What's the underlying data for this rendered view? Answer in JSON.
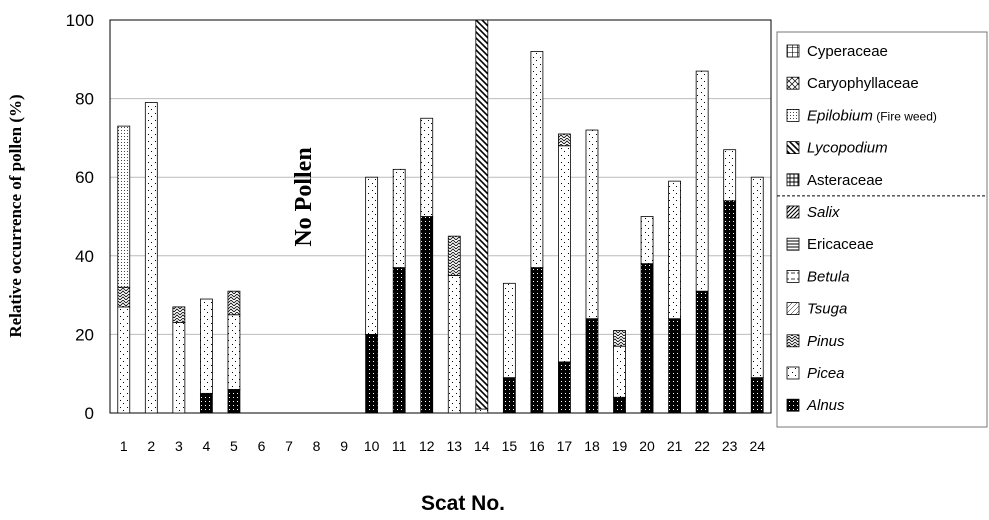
{
  "chart_data": {
    "type": "bar",
    "stacked": true,
    "xlabel": "Scat No.",
    "ylabel": "Relative occurrence of pollen (%)",
    "ylim": [
      0,
      100
    ],
    "yticks": [
      0,
      20,
      40,
      60,
      80,
      100
    ],
    "categories": [
      "1",
      "2",
      "3",
      "4",
      "5",
      "6",
      "7",
      "8",
      "9",
      "10",
      "11",
      "12",
      "13",
      "14",
      "15",
      "16",
      "17",
      "18",
      "19",
      "20",
      "21",
      "22",
      "23",
      "24"
    ],
    "annotation": "No Pollen",
    "legend_position": "right",
    "series": [
      {
        "name": "Alnus",
        "italic": true,
        "pattern": "alnus",
        "values": [
          0,
          0,
          0,
          5,
          6,
          0,
          0,
          0,
          0,
          20,
          37,
          50,
          0,
          0,
          9,
          37,
          13,
          24,
          4,
          38,
          24,
          31,
          54,
          9
        ]
      },
      {
        "name": "Picea",
        "italic": true,
        "pattern": "picea",
        "values": [
          27,
          79,
          23,
          24,
          19,
          0,
          0,
          0,
          0,
          40,
          25,
          25,
          35,
          1,
          24,
          55,
          55,
          48,
          13,
          12,
          35,
          56,
          13,
          51
        ]
      },
      {
        "name": "Pinus",
        "italic": true,
        "pattern": "pinus",
        "values": [
          5,
          0,
          4,
          0,
          6,
          0,
          0,
          0,
          0,
          0,
          0,
          0,
          10,
          0,
          0,
          0,
          3,
          0,
          4,
          0,
          0,
          0,
          0,
          0
        ]
      },
      {
        "name": "Tsuga",
        "italic": true,
        "pattern": "tsuga",
        "values": [
          0,
          0,
          0,
          0,
          0,
          0,
          0,
          0,
          0,
          0,
          0,
          0,
          0,
          0,
          0,
          0,
          0,
          0,
          0,
          0,
          0,
          0,
          0,
          0
        ]
      },
      {
        "name": "Betula",
        "italic": true,
        "pattern": "betula",
        "values": [
          0,
          0,
          0,
          0,
          0,
          0,
          0,
          0,
          0,
          0,
          0,
          0,
          0,
          0,
          0,
          0,
          0,
          0,
          0,
          0,
          0,
          0,
          0,
          0
        ]
      },
      {
        "name": "Ericaceae",
        "italic": false,
        "pattern": "ericaceae",
        "values": [
          0,
          0,
          0,
          0,
          0,
          0,
          0,
          0,
          0,
          0,
          0,
          0,
          0,
          0,
          0,
          0,
          0,
          0,
          0,
          0,
          0,
          0,
          0,
          0
        ]
      },
      {
        "name": "Salix",
        "italic": true,
        "pattern": "salix",
        "values": [
          0,
          0,
          0,
          0,
          0,
          0,
          0,
          0,
          0,
          0,
          0,
          0,
          0,
          0,
          0,
          0,
          0,
          0,
          0,
          0,
          0,
          0,
          0,
          0
        ]
      },
      {
        "name": "Asteraceae",
        "italic": false,
        "pattern": "asteraceae",
        "values": [
          0,
          0,
          0,
          0,
          0,
          0,
          0,
          0,
          0,
          0,
          0,
          0,
          0,
          0,
          0,
          0,
          0,
          0,
          0,
          0,
          0,
          0,
          0,
          0
        ]
      },
      {
        "name": "Lycopodium",
        "italic": true,
        "pattern": "lycopodium",
        "values": [
          0,
          0,
          0,
          0,
          0,
          0,
          0,
          0,
          0,
          0,
          0,
          0,
          0,
          99,
          0,
          0,
          0,
          0,
          0,
          0,
          0,
          0,
          0,
          0
        ]
      },
      {
        "name": "Epilobium",
        "italic": true,
        "suffix": " (Fire weed)",
        "pattern": "epilobium",
        "values": [
          41,
          0,
          0,
          0,
          0,
          0,
          0,
          0,
          0,
          0,
          0,
          0,
          0,
          0,
          0,
          0,
          0,
          0,
          0,
          0,
          0,
          0,
          0,
          0
        ]
      },
      {
        "name": "Caryophyllaceae",
        "italic": false,
        "pattern": "caryophyllaceae",
        "values": [
          0,
          0,
          0,
          0,
          0,
          0,
          0,
          0,
          0,
          0,
          0,
          0,
          0,
          0,
          0,
          0,
          0,
          0,
          0,
          0,
          0,
          0,
          0,
          0
        ]
      },
      {
        "name": "Cyperaceae",
        "italic": false,
        "pattern": "cyperaceae",
        "values": [
          0,
          0,
          0,
          0,
          0,
          0,
          0,
          0,
          0,
          0,
          0,
          0,
          0,
          0,
          0,
          0,
          0,
          0,
          0,
          0,
          0,
          0,
          0,
          0
        ]
      }
    ]
  }
}
